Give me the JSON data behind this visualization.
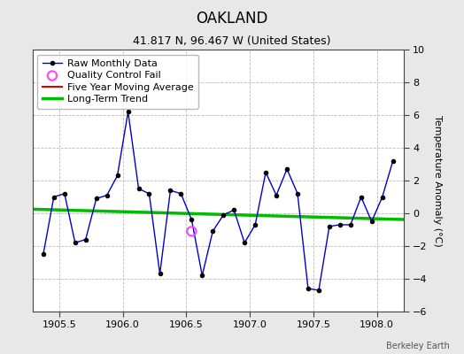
{
  "title": "OAKLAND",
  "subtitle": "41.817 N, 96.467 W (United States)",
  "ylabel": "Temperature Anomaly (°C)",
  "credit": "Berkeley Earth",
  "xlim": [
    1905.29,
    1908.21
  ],
  "ylim": [
    -6,
    10
  ],
  "yticks": [
    -6,
    -4,
    -2,
    0,
    2,
    4,
    6,
    8,
    10
  ],
  "xticks": [
    1905.5,
    1906.0,
    1906.5,
    1907.0,
    1907.5,
    1908.0
  ],
  "background_color": "#e8e8e8",
  "plot_bg_color": "#ffffff",
  "raw_x": [
    1905.375,
    1905.458,
    1905.542,
    1905.625,
    1905.708,
    1905.792,
    1905.875,
    1905.958,
    1906.042,
    1906.125,
    1906.208,
    1906.292,
    1906.375,
    1906.458,
    1906.542,
    1906.625,
    1906.708,
    1906.792,
    1906.875,
    1906.958,
    1907.042,
    1907.125,
    1907.208,
    1907.292,
    1907.375,
    1907.458,
    1907.542,
    1907.625,
    1907.708,
    1907.792,
    1907.875,
    1907.958,
    1908.042,
    1908.125
  ],
  "raw_y": [
    -2.5,
    1.0,
    1.2,
    -1.8,
    -1.6,
    0.9,
    1.1,
    2.3,
    6.2,
    1.5,
    1.2,
    -3.7,
    1.4,
    1.2,
    -0.4,
    -3.8,
    -1.1,
    -0.1,
    0.2,
    -1.8,
    -0.7,
    2.5,
    1.1,
    2.7,
    1.2,
    -4.6,
    -4.7,
    -0.8,
    -0.7,
    -0.7,
    1.0,
    -0.5,
    1.0,
    3.2
  ],
  "qc_fail_x": [
    1906.542
  ],
  "qc_fail_y": [
    -1.1
  ],
  "trend_x": [
    1905.29,
    1908.21
  ],
  "trend_y": [
    0.25,
    -0.38
  ],
  "raw_color": "#0000cc",
  "raw_marker_color": "#000000",
  "qc_color": "#ff44ff",
  "trend_color": "#00bb00",
  "five_yr_color": "#dd0000",
  "legend_fontsize": 8,
  "title_fontsize": 12,
  "subtitle_fontsize": 9,
  "tick_fontsize": 8,
  "credit_fontsize": 7
}
